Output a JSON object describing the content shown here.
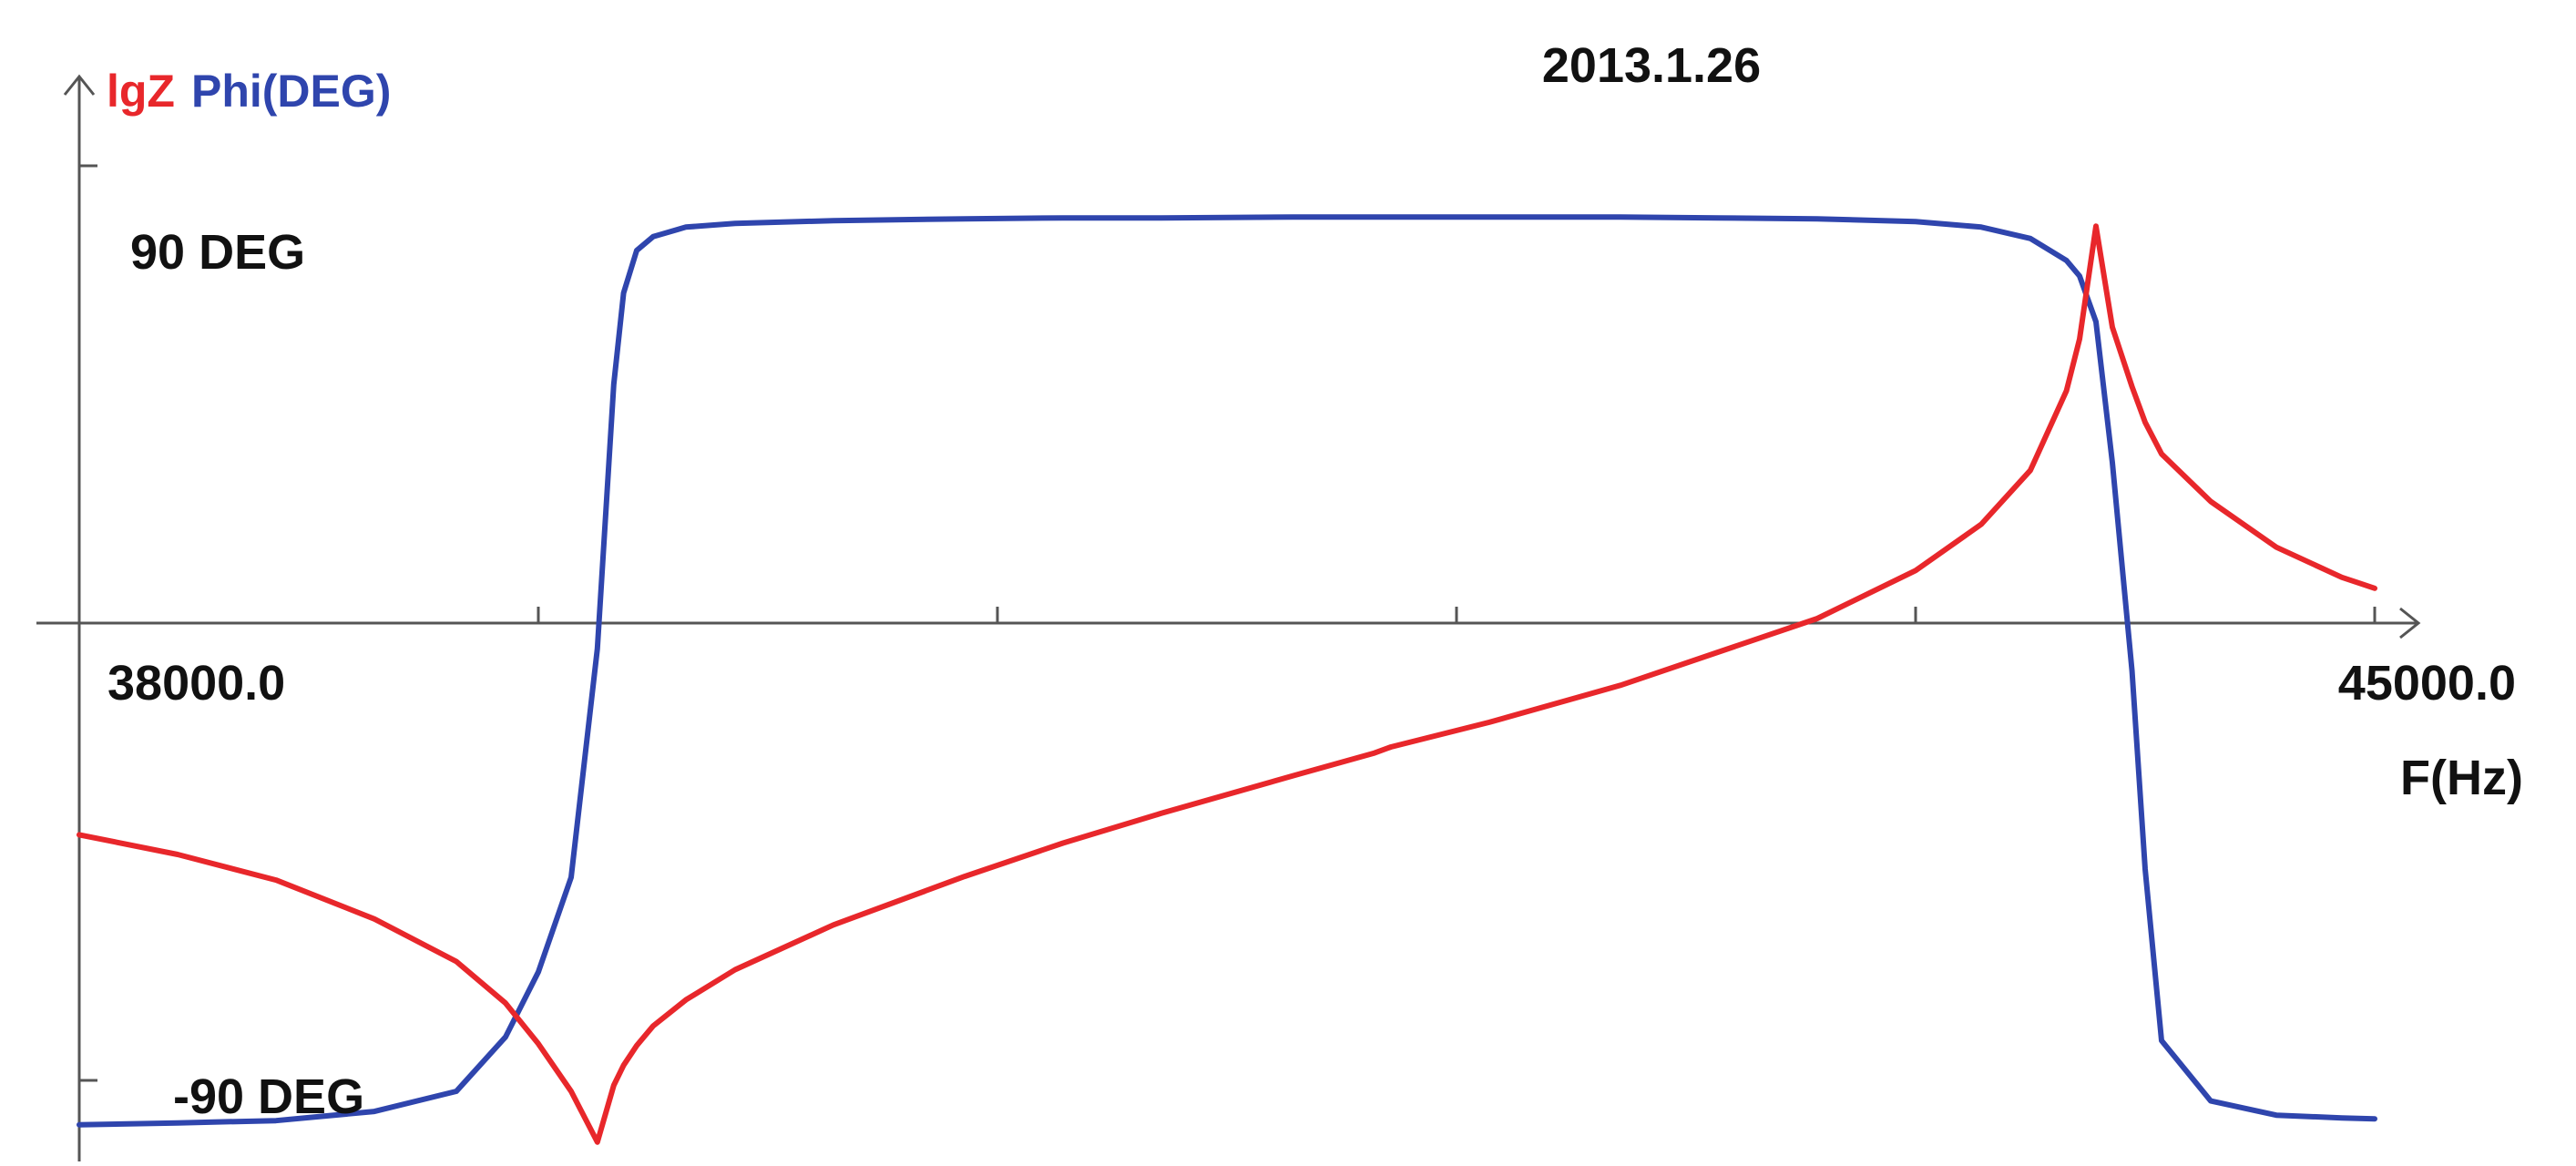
{
  "chart_data": {
    "type": "line",
    "title": "2013.1.26",
    "xlabel": "F(Hz)",
    "ylabel_series_1": "lgZ",
    "ylabel_series_2": "Phi(DEG)",
    "x_tick_labels": [
      "38000.0",
      "45000.0"
    ],
    "y_tick_labels": [
      "90 DEG",
      "-90 DEG"
    ],
    "xlim": [
      38000,
      45000
    ],
    "ylim": [
      -100,
      100
    ],
    "grid": false,
    "colors": {
      "lgZ": "#e8272b",
      "Phi": "#2f45ad",
      "axis": "#555555",
      "text": "#111111"
    },
    "x": [
      38000,
      38300,
      38600,
      38900,
      39150,
      39300,
      39400,
      39500,
      39580,
      39630,
      39660,
      39700,
      39750,
      39850,
      40000,
      40300,
      40700,
      41000,
      41300,
      41700,
      41950,
      42000,
      42300,
      42700,
      43000,
      43300,
      43600,
      43800,
      43950,
      44060,
      44100,
      44150,
      44200,
      44260,
      44300,
      44350,
      44500,
      44700,
      44900,
      45000
    ],
    "series": [
      {
        "name": "lgZ",
        "values": [
          -46.3,
          -50.6,
          -56.2,
          -64.7,
          -74.0,
          -83.1,
          -92.0,
          -102.4,
          -113.5,
          -101.1,
          -96.7,
          -92.4,
          -88.1,
          -82.4,
          -75.8,
          -66.0,
          -55.4,
          -48.1,
          -41.6,
          -33.4,
          -28.4,
          -27.1,
          -21.7,
          -13.6,
          -6.3,
          1.0,
          11.5,
          21.6,
          33.4,
          50.8,
          62.1,
          86.8,
          64.7,
          51.7,
          43.9,
          37.0,
          26.6,
          16.6,
          10.0,
          7.6
        ],
        "color": "#e8272b"
      },
      {
        "name": "Phi(DEG)",
        "values": [
          -109.7,
          -109.3,
          -108.8,
          -106.8,
          -102.4,
          -90.5,
          -76.3,
          -55.6,
          -5.6,
          52.2,
          72.2,
          81.5,
          84.5,
          86.6,
          87.4,
          88.0,
          88.4,
          88.6,
          88.6,
          88.8,
          88.8,
          88.8,
          88.8,
          88.8,
          88.6,
          88.4,
          87.8,
          86.6,
          84.1,
          79.3,
          75.9,
          65.9,
          35.1,
          -10.5,
          -53.8,
          -91.3,
          -104.5,
          -107.6,
          -108.2,
          -108.4
        ],
        "color": "#2f45ad"
      }
    ]
  }
}
